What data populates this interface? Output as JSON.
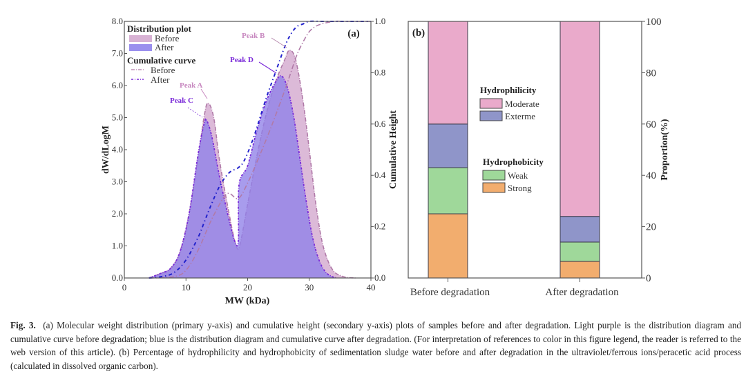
{
  "chart_data": [
    {
      "type": "area",
      "panel_label": "(a)",
      "xlabel": "MW (kDa)",
      "ylabel": "dW/dLogM",
      "y2label": "Cumulative Height",
      "xlim": [
        0,
        40
      ],
      "ylim": [
        0,
        8
      ],
      "y2lim": [
        0,
        1
      ],
      "xticks": [
        "0",
        "10",
        "20",
        "30",
        "40"
      ],
      "yticks": [
        "0.0",
        "1.0",
        "2.0",
        "3.0",
        "4.0",
        "5.0",
        "6.0",
        "7.0",
        "8.0"
      ],
      "y2ticks": [
        "0.0",
        "0.2",
        "0.4",
        "0.6",
        "0.8",
        "1.0"
      ],
      "legend": {
        "placement": "top-left",
        "distribution_title": "Distribution plot",
        "distribution_items": [
          "Before",
          "After"
        ],
        "cumulative_title": "Cumulative curve",
        "cumulative_items": [
          "Before",
          "After"
        ]
      },
      "series": [
        {
          "name": "Distribution Before",
          "axis": "primary",
          "color": "#d8b2d4",
          "x": [
            4,
            6,
            7.5,
            9,
            10.5,
            12,
            13,
            13.6,
            14.5,
            15.5,
            17,
            18,
            18.7,
            20,
            21.5,
            23,
            24.5,
            26,
            26.8,
            27.8,
            29,
            30,
            31,
            32,
            33,
            34,
            35,
            36,
            37.5
          ],
          "y": [
            0,
            0.15,
            0.3,
            0.8,
            2.0,
            3.8,
            5.1,
            5.45,
            5.0,
            3.6,
            2.0,
            1.1,
            1.0,
            2.3,
            3.8,
            5.1,
            6.1,
            6.8,
            7.1,
            6.8,
            5.5,
            4.0,
            2.4,
            1.2,
            0.55,
            0.2,
            0.08,
            0.02,
            0
          ]
        },
        {
          "name": "Distribution After",
          "axis": "primary",
          "color": "#9a88e0",
          "x": [
            4,
            6,
            7.5,
            9,
            10.5,
            12,
            13,
            13.4,
            14.2,
            15.5,
            17,
            18,
            18.5,
            18.6,
            20,
            21.5,
            23,
            24.5,
            25.5,
            26.5,
            27.5,
            28.5,
            29.5,
            30.5,
            31.5,
            32.5,
            33.5,
            34.5
          ],
          "y": [
            0,
            0.15,
            0.3,
            0.8,
            2.0,
            3.9,
            4.85,
            4.9,
            4.4,
            3.1,
            1.8,
            1.1,
            1.2,
            2.9,
            3.5,
            4.6,
            5.5,
            6.1,
            6.3,
            5.9,
            5.0,
            3.7,
            2.4,
            1.3,
            0.6,
            0.22,
            0.06,
            0
          ]
        },
        {
          "name": "Cumulative Before",
          "axis": "secondary",
          "color": "#b07aa8",
          "x": [
            4,
            8,
            10,
            12,
            14,
            16,
            17,
            18.5,
            20,
            22,
            24,
            26,
            27,
            28,
            29,
            30,
            31,
            32,
            34,
            36,
            40
          ],
          "y": [
            0,
            0.005,
            0.03,
            0.11,
            0.22,
            0.31,
            0.33,
            0.31,
            0.37,
            0.48,
            0.6,
            0.73,
            0.8,
            0.87,
            0.92,
            0.96,
            0.98,
            0.99,
            1.0,
            1.0,
            1.0
          ]
        },
        {
          "name": "Cumulative After",
          "axis": "secondary",
          "color": "#2222cc",
          "x": [
            4,
            6,
            8,
            10,
            12,
            13,
            14,
            15.5,
            17,
            18.5,
            19.5,
            21,
            23,
            24.5,
            26,
            27,
            28,
            29,
            30,
            32,
            34,
            40
          ],
          "y": [
            0,
            0.005,
            0.02,
            0.07,
            0.16,
            0.22,
            0.28,
            0.36,
            0.41,
            0.43,
            0.46,
            0.55,
            0.7,
            0.8,
            0.9,
            0.95,
            0.98,
            0.99,
            1.0,
            1.0,
            1.0,
            1.0
          ]
        }
      ],
      "annotations": [
        {
          "text": "Peak A",
          "color": "#c889c0",
          "x": 13.6,
          "y": 5.45
        },
        {
          "text": "Peak B",
          "color": "#c889c0",
          "x": 26.8,
          "y": 7.1
        },
        {
          "text": "Peak C",
          "color": "#7a2ad8",
          "x": 13.4,
          "y": 4.9
        },
        {
          "text": "Peak D",
          "color": "#7a2ad8",
          "x": 25.5,
          "y": 6.3
        }
      ]
    },
    {
      "type": "bar",
      "stacked": true,
      "panel_label": "(b)",
      "categories": [
        "Before degradation",
        "After degradation"
      ],
      "ylabel": "Proportion(%)",
      "ylim": [
        0,
        100
      ],
      "yticks": [
        "0",
        "20",
        "40",
        "60",
        "80",
        "100"
      ],
      "legend_groups": [
        {
          "title": "Hydrophilicity",
          "items": [
            "Moderate",
            "Exterme"
          ]
        },
        {
          "title": "Hydrophobicity",
          "items": [
            "Weak",
            "Strong"
          ]
        }
      ],
      "series": [
        {
          "name": "Strong",
          "color": "#f2ad6e",
          "values": [
            25,
            6.5
          ]
        },
        {
          "name": "Weak",
          "color": "#9fd89a",
          "values": [
            18,
            7.5
          ]
        },
        {
          "name": "Exterme",
          "color": "#8f95c9",
          "values": [
            17,
            10
          ]
        },
        {
          "name": "Moderate",
          "color": "#eaaacb",
          "values": [
            40,
            76
          ]
        }
      ]
    }
  ],
  "caption": {
    "label": "Fig. 3.",
    "text": "(a) Molecular weight distribution (primary y-axis) and cumulative height (secondary y-axis) plots of samples before and after degradation. Light purple is the distribution diagram and cumulative curve before degradation; blue is the distribution diagram and cumulative curve after degradation. (For interpretation of references to color in this figure legend, the reader is referred to the web version of this article). (b) Percentage of hydrophilicity and hydrophobicity of sedimentation sludge water before and after degradation in the ultraviolet/ferrous ions/peracetic acid process (calculated in dissolved organic carbon)."
  }
}
